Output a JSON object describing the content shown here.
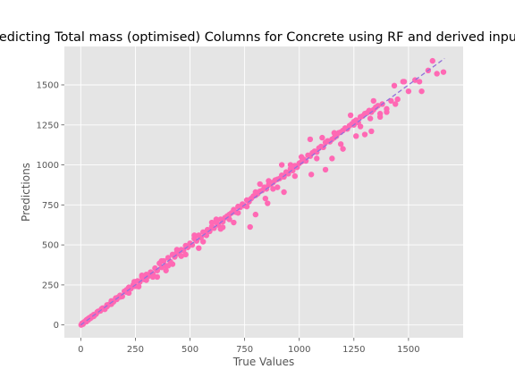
{
  "chart_data": {
    "type": "scatter",
    "title": "Predicting Total mass (optimised) Columns for Concrete using RF and derived inputs",
    "xlabel": "True Values",
    "ylabel": "Predictions",
    "xlim": [
      -75,
      1750
    ],
    "ylim": [
      -80,
      1740
    ],
    "xticks": [
      0,
      250,
      500,
      750,
      1000,
      1250,
      1500
    ],
    "yticks": [
      0,
      250,
      500,
      750,
      1000,
      1250,
      1500
    ],
    "grid": true,
    "legend": "none",
    "reference_line": {
      "style": "dashed",
      "from": [
        0,
        0
      ],
      "to": [
        1665,
        1665
      ]
    },
    "point_color": "#ff69b4",
    "line_color": "#9370db",
    "background_color": "#e5e5e5",
    "points": [
      [
        2,
        0
      ],
      [
        5,
        8
      ],
      [
        8,
        12
      ],
      [
        12,
        10
      ],
      [
        15,
        18
      ],
      [
        20,
        22
      ],
      [
        25,
        20
      ],
      [
        30,
        35
      ],
      [
        35,
        32
      ],
      [
        40,
        45
      ],
      [
        45,
        42
      ],
      [
        50,
        55
      ],
      [
        55,
        52
      ],
      [
        60,
        65
      ],
      [
        70,
        68
      ],
      [
        80,
        85
      ],
      [
        90,
        88
      ],
      [
        100,
        105
      ],
      [
        110,
        98
      ],
      [
        120,
        125
      ],
      [
        130,
        128
      ],
      [
        140,
        150
      ],
      [
        150,
        145
      ],
      [
        160,
        168
      ],
      [
        170,
        172
      ],
      [
        180,
        185
      ],
      [
        190,
        178
      ],
      [
        200,
        210
      ],
      [
        210,
        205
      ],
      [
        220,
        235
      ],
      [
        230,
        228
      ],
      [
        240,
        250
      ],
      [
        250,
        242
      ],
      [
        260,
        275
      ],
      [
        270,
        268
      ],
      [
        280,
        300
      ],
      [
        290,
        285
      ],
      [
        300,
        315
      ],
      [
        310,
        305
      ],
      [
        320,
        330
      ],
      [
        330,
        320
      ],
      [
        340,
        355
      ],
      [
        350,
        340
      ],
      [
        360,
        385
      ],
      [
        370,
        360
      ],
      [
        380,
        400
      ],
      [
        390,
        370
      ],
      [
        400,
        420
      ],
      [
        410,
        395
      ],
      [
        420,
        440
      ],
      [
        430,
        425
      ],
      [
        440,
        455
      ],
      [
        450,
        445
      ],
      [
        460,
        470
      ],
      [
        470,
        465
      ],
      [
        480,
        495
      ],
      [
        490,
        485
      ],
      [
        500,
        510
      ],
      [
        510,
        500
      ],
      [
        520,
        540
      ],
      [
        530,
        525
      ],
      [
        540,
        560
      ],
      [
        550,
        545
      ],
      [
        560,
        580
      ],
      [
        570,
        565
      ],
      [
        580,
        595
      ],
      [
        590,
        585
      ],
      [
        600,
        615
      ],
      [
        610,
        605
      ],
      [
        620,
        640
      ],
      [
        630,
        625
      ],
      [
        640,
        660
      ],
      [
        650,
        645
      ],
      [
        660,
        670
      ],
      [
        670,
        680
      ],
      [
        680,
        690
      ],
      [
        690,
        700
      ],
      [
        700,
        720
      ],
      [
        710,
        705
      ],
      [
        720,
        740
      ],
      [
        730,
        735
      ],
      [
        740,
        755
      ],
      [
        750,
        745
      ],
      [
        760,
        780
      ],
      [
        770,
        770
      ],
      [
        780,
        790
      ],
      [
        790,
        805
      ],
      [
        800,
        810
      ],
      [
        810,
        820
      ],
      [
        820,
        835
      ],
      [
        830,
        840
      ],
      [
        840,
        860
      ],
      [
        850,
        850
      ],
      [
        860,
        875
      ],
      [
        870,
        880
      ],
      [
        880,
        890
      ],
      [
        890,
        905
      ],
      [
        900,
        910
      ],
      [
        910,
        915
      ],
      [
        920,
        935
      ],
      [
        930,
        925
      ],
      [
        940,
        955
      ],
      [
        950,
        945
      ],
      [
        960,
        975
      ],
      [
        970,
        965
      ],
      [
        980,
        995
      ],
      [
        990,
        985
      ],
      [
        1000,
        1010
      ],
      [
        1010,
        1020
      ],
      [
        1020,
        1035
      ],
      [
        1030,
        1025
      ],
      [
        1040,
        1060
      ],
      [
        1050,
        1055
      ],
      [
        1060,
        1075
      ],
      [
        1070,
        1085
      ],
      [
        1080,
        1080
      ],
      [
        1090,
        1105
      ],
      [
        1100,
        1115
      ],
      [
        1110,
        1110
      ],
      [
        1120,
        1140
      ],
      [
        1130,
        1150
      ],
      [
        1140,
        1145
      ],
      [
        1150,
        1160
      ],
      [
        1160,
        1170
      ],
      [
        1170,
        1180
      ],
      [
        1180,
        1200
      ],
      [
        1190,
        1205
      ],
      [
        1200,
        1215
      ],
      [
        1210,
        1230
      ],
      [
        1220,
        1225
      ],
      [
        1230,
        1245
      ],
      [
        1240,
        1255
      ],
      [
        1250,
        1270
      ],
      [
        1260,
        1280
      ],
      [
        1270,
        1265
      ],
      [
        1280,
        1300
      ],
      [
        1290,
        1305
      ],
      [
        1300,
        1320
      ],
      [
        1310,
        1325
      ],
      [
        1320,
        1340
      ],
      [
        1330,
        1330
      ],
      [
        1340,
        1345
      ],
      [
        1350,
        1360
      ],
      [
        1360,
        1370
      ],
      [
        1380,
        1380
      ],
      [
        1400,
        1350
      ],
      [
        1420,
        1400
      ],
      [
        1440,
        1380
      ],
      [
        1450,
        1410
      ],
      [
        1480,
        1520
      ],
      [
        1500,
        1460
      ],
      [
        1530,
        1530
      ],
      [
        1560,
        1460
      ],
      [
        1590,
        1590
      ],
      [
        1610,
        1650
      ],
      [
        1630,
        1570
      ],
      [
        1660,
        1580
      ],
      [
        775,
        612
      ],
      [
        800,
        690
      ],
      [
        855,
        760
      ],
      [
        930,
        830
      ],
      [
        980,
        930
      ],
      [
        1055,
        940
      ],
      [
        1120,
        970
      ],
      [
        1150,
        1040
      ],
      [
        1200,
        1100
      ],
      [
        1260,
        1180
      ],
      [
        1300,
        1190
      ],
      [
        1330,
        1210
      ],
      [
        1250,
        1250
      ],
      [
        1370,
        1300
      ],
      [
        1400,
        1330
      ],
      [
        1435,
        1495
      ],
      [
        1475,
        1520
      ],
      [
        1550,
        1520
      ],
      [
        1235,
        1310
      ],
      [
        1105,
        1170
      ],
      [
        1050,
        1160
      ],
      [
        920,
        1000
      ],
      [
        880,
        850
      ],
      [
        845,
        790
      ],
      [
        820,
        880
      ],
      [
        700,
        640
      ],
      [
        650,
        610
      ],
      [
        600,
        640
      ],
      [
        575,
        560
      ],
      [
        540,
        480
      ],
      [
        480,
        440
      ],
      [
        420,
        380
      ],
      [
        390,
        340
      ],
      [
        350,
        300
      ],
      [
        300,
        280
      ],
      [
        265,
        240
      ],
      [
        220,
        200
      ],
      [
        180,
        175
      ],
      [
        140,
        130
      ],
      [
        95,
        100
      ],
      [
        60,
        55
      ],
      [
        25,
        30
      ],
      [
        10,
        5
      ],
      [
        1190,
        1130
      ],
      [
        1280,
        1240
      ],
      [
        1340,
        1400
      ],
      [
        1370,
        1320
      ],
      [
        1325,
        1290
      ],
      [
        1160,
        1200
      ],
      [
        1080,
        1040
      ],
      [
        1010,
        1050
      ],
      [
        960,
        1000
      ],
      [
        900,
        860
      ],
      [
        860,
        900
      ],
      [
        800,
        830
      ],
      [
        760,
        740
      ],
      [
        720,
        700
      ],
      [
        680,
        660
      ],
      [
        640,
        600
      ],
      [
        620,
        660
      ],
      [
        560,
        520
      ],
      [
        520,
        560
      ],
      [
        460,
        430
      ],
      [
        440,
        470
      ],
      [
        400,
        370
      ],
      [
        370,
        400
      ],
      [
        330,
        300
      ],
      [
        280,
        310
      ],
      [
        245,
        270
      ],
      [
        210,
        220
      ],
      [
        165,
        160
      ],
      [
        120,
        115
      ],
      [
        75,
        80
      ],
      [
        35,
        40
      ]
    ]
  }
}
